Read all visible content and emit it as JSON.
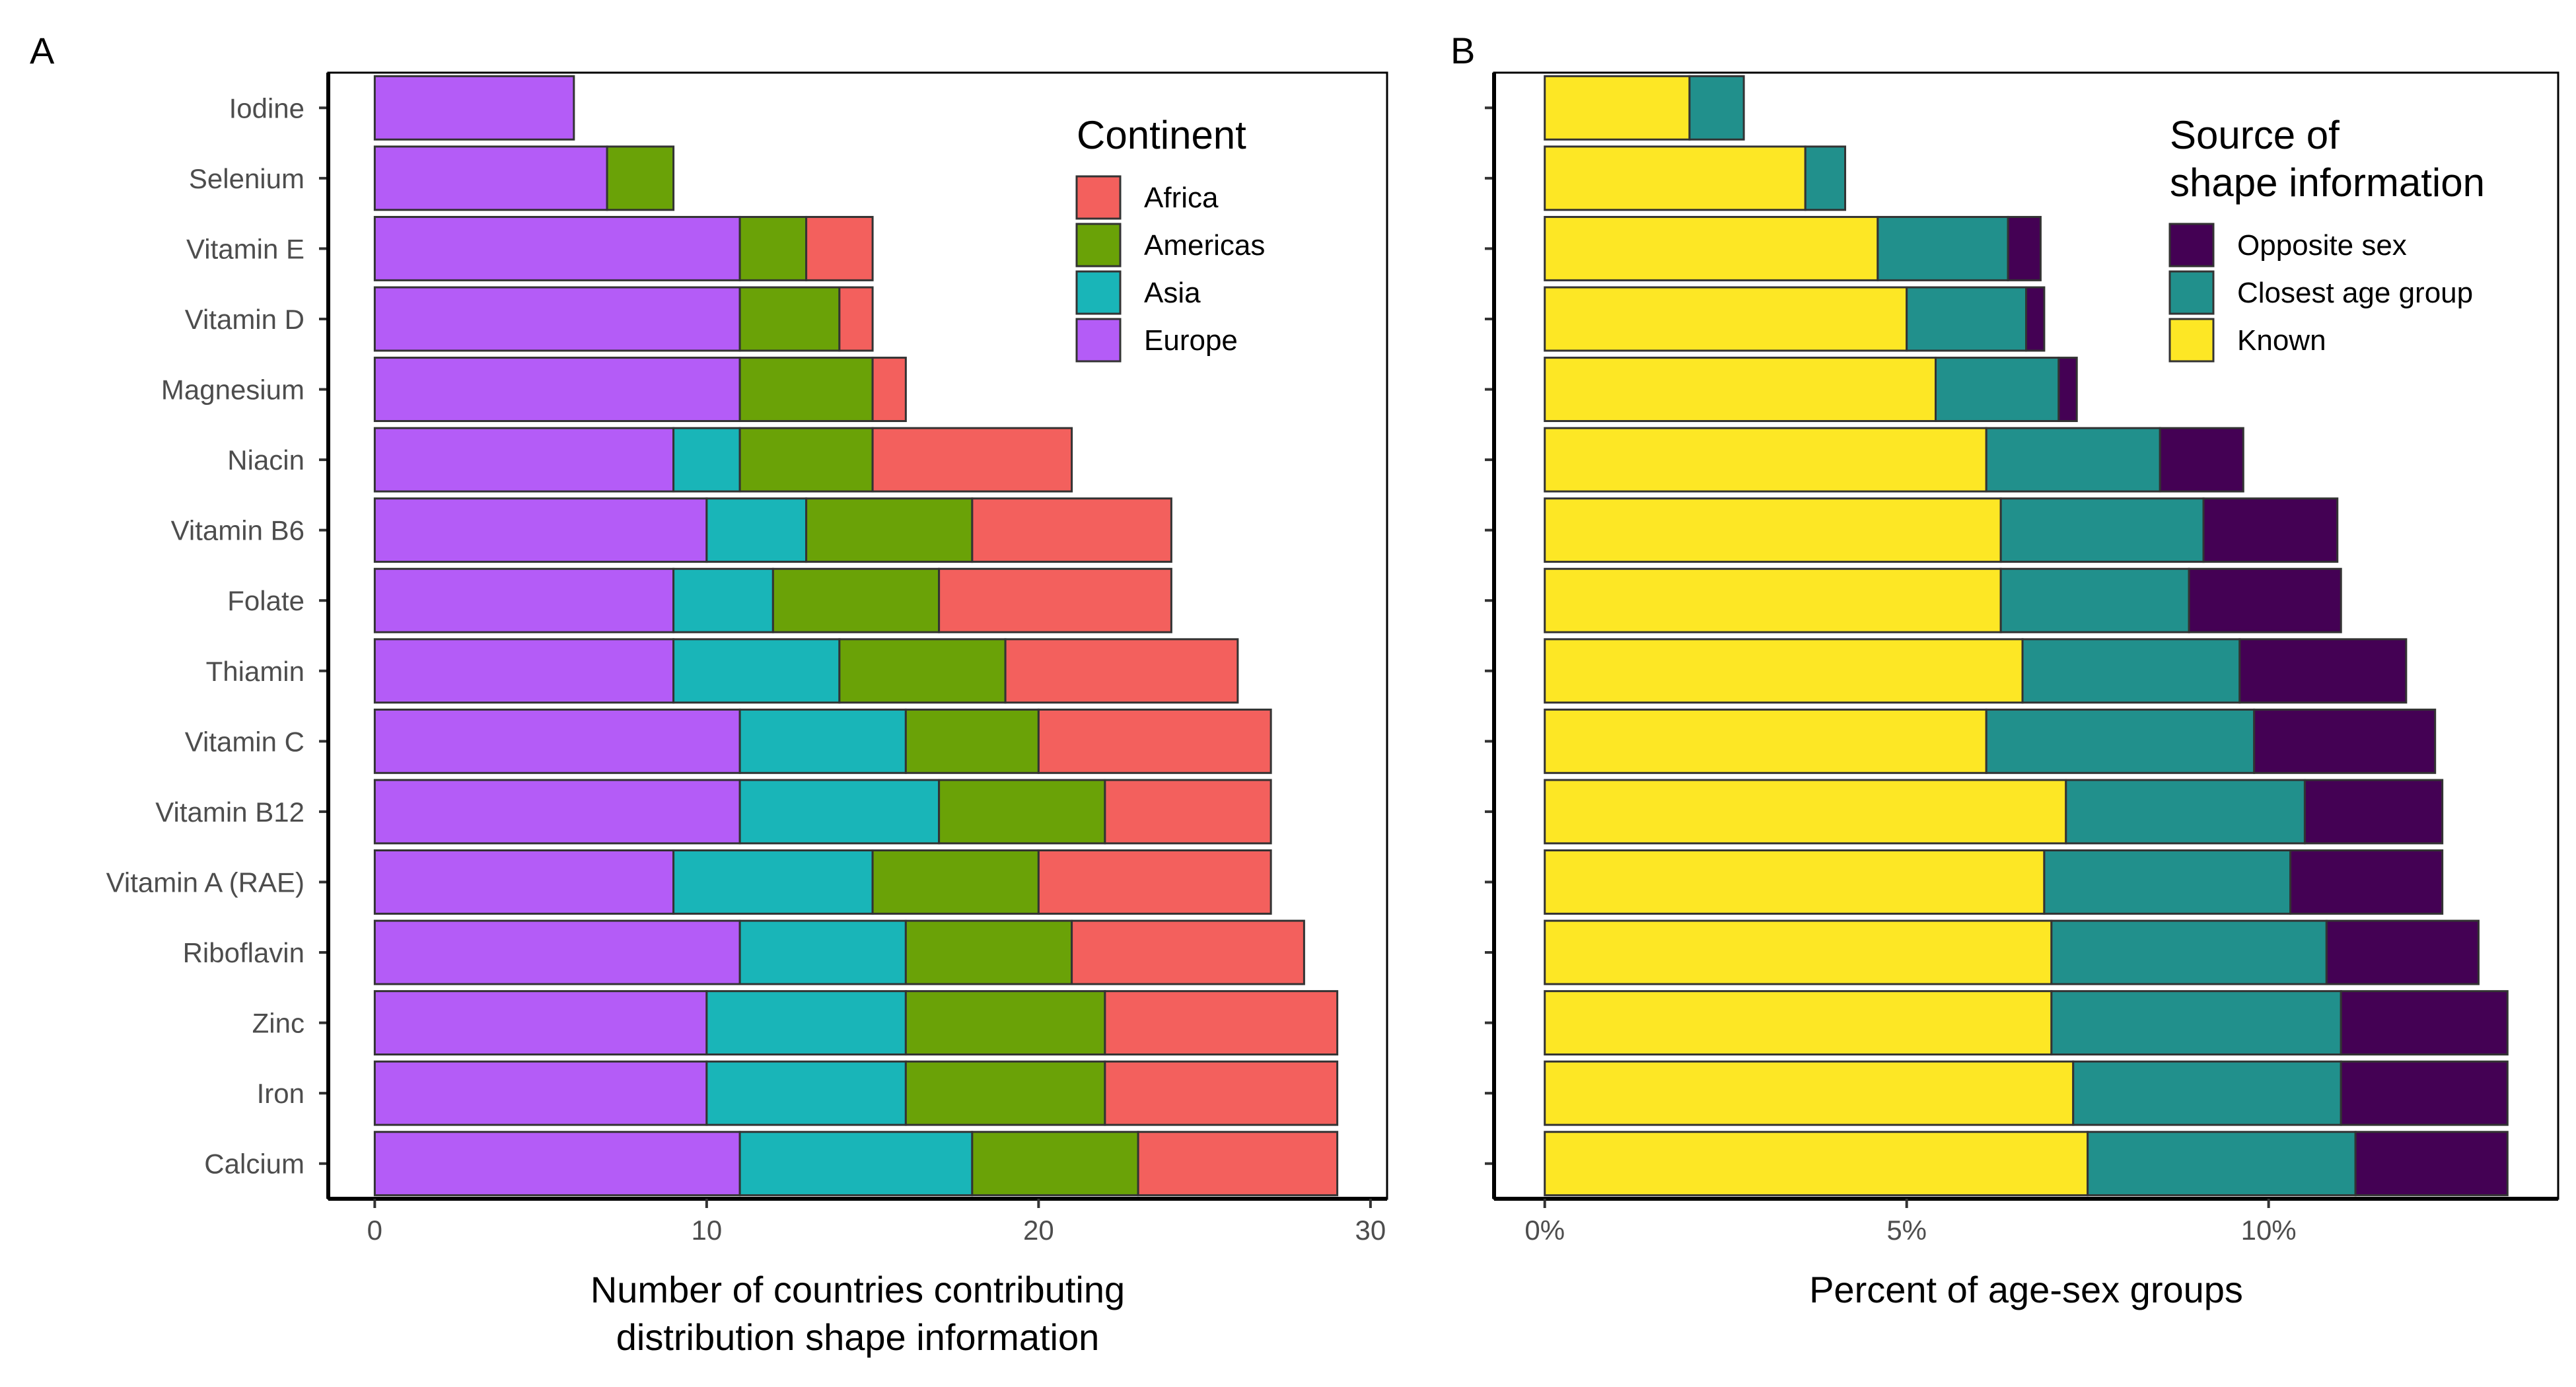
{
  "chart_data": [
    {
      "type": "bar",
      "orientation": "horizontal",
      "stacked": true,
      "panel_label": "A",
      "categories": [
        "Iodine",
        "Selenium",
        "Vitamin E",
        "Vitamin D",
        "Magnesium",
        "Niacin",
        "Vitamin B6",
        "Folate",
        "Thiamin",
        "Vitamin C",
        "Vitamin B12",
        "Vitamin A (RAE)",
        "Riboflavin",
        "Zinc",
        "Iron",
        "Calcium"
      ],
      "series": [
        {
          "name": "Europe",
          "color": "#b45cf7",
          "values": [
            6,
            7,
            11,
            11,
            11,
            9,
            10,
            9,
            9,
            11,
            11,
            9,
            11,
            10,
            10,
            11
          ]
        },
        {
          "name": "Asia",
          "color": "#19b5b8",
          "values": [
            0,
            0,
            0,
            0,
            0,
            2,
            3,
            3,
            5,
            5,
            6,
            6,
            5,
            6,
            6,
            7
          ]
        },
        {
          "name": "Americas",
          "color": "#6aa207",
          "values": [
            0,
            2,
            2,
            3,
            4,
            4,
            5,
            5,
            5,
            4,
            5,
            5,
            5,
            6,
            6,
            5
          ]
        },
        {
          "name": "Africa",
          "color": "#f3605d",
          "values": [
            0,
            0,
            2,
            1,
            1,
            6,
            6,
            7,
            7,
            7,
            5,
            7,
            7,
            7,
            7,
            6
          ]
        }
      ],
      "xlabel": [
        "Number of countries contributing",
        "distribution shape information"
      ],
      "xlim": [
        -1.4,
        30.5
      ],
      "xticks": [
        0,
        10,
        20,
        30
      ],
      "xtick_labels": [
        "0",
        "10",
        "20",
        "30"
      ],
      "legend": {
        "title": [
          "Continent"
        ],
        "position": "top-right",
        "order": [
          "Africa",
          "Americas",
          "Asia",
          "Europe"
        ]
      }
    },
    {
      "type": "bar",
      "orientation": "horizontal",
      "stacked": true,
      "panel_label": "B",
      "categories": [
        "Iodine",
        "Selenium",
        "Vitamin E",
        "Vitamin D",
        "Magnesium",
        "Niacin",
        "Vitamin B6",
        "Folate",
        "Thiamin",
        "Vitamin C",
        "Vitamin B12",
        "Vitamin A (RAE)",
        "Riboflavin",
        "Zinc",
        "Iron",
        "Calcium"
      ],
      "series": [
        {
          "name": "Known",
          "color": "#fde725",
          "values": [
            2.0,
            3.6,
            4.6,
            5.0,
            5.4,
            6.1,
            6.3,
            6.3,
            6.6,
            6.1,
            7.2,
            6.9,
            7.0,
            7.0,
            7.3,
            7.5
          ]
        },
        {
          "name": "Closest age group",
          "color": "#21908c",
          "values": [
            0.75,
            0.55,
            1.8,
            1.65,
            1.7,
            2.4,
            2.8,
            2.6,
            3.0,
            3.7,
            3.3,
            3.4,
            3.8,
            4.0,
            3.7,
            3.7
          ]
        },
        {
          "name": "Opposite sex",
          "color": "#440154",
          "values": [
            0,
            0,
            0.45,
            0.25,
            0.25,
            1.15,
            1.85,
            2.1,
            2.3,
            2.5,
            1.9,
            2.1,
            2.1,
            2.3,
            2.3,
            2.1
          ]
        }
      ],
      "xlabel": [
        "Percent of age-sex groups"
      ],
      "xlim": [
        -0.7,
        14.0
      ],
      "xticks": [
        0,
        5,
        10
      ],
      "xtick_labels": [
        "0%",
        "5%",
        "10%"
      ],
      "legend": {
        "title": [
          "Source of",
          "shape information"
        ],
        "position": "top-right",
        "order": [
          "Opposite sex",
          "Closest age group",
          "Known"
        ]
      }
    }
  ]
}
